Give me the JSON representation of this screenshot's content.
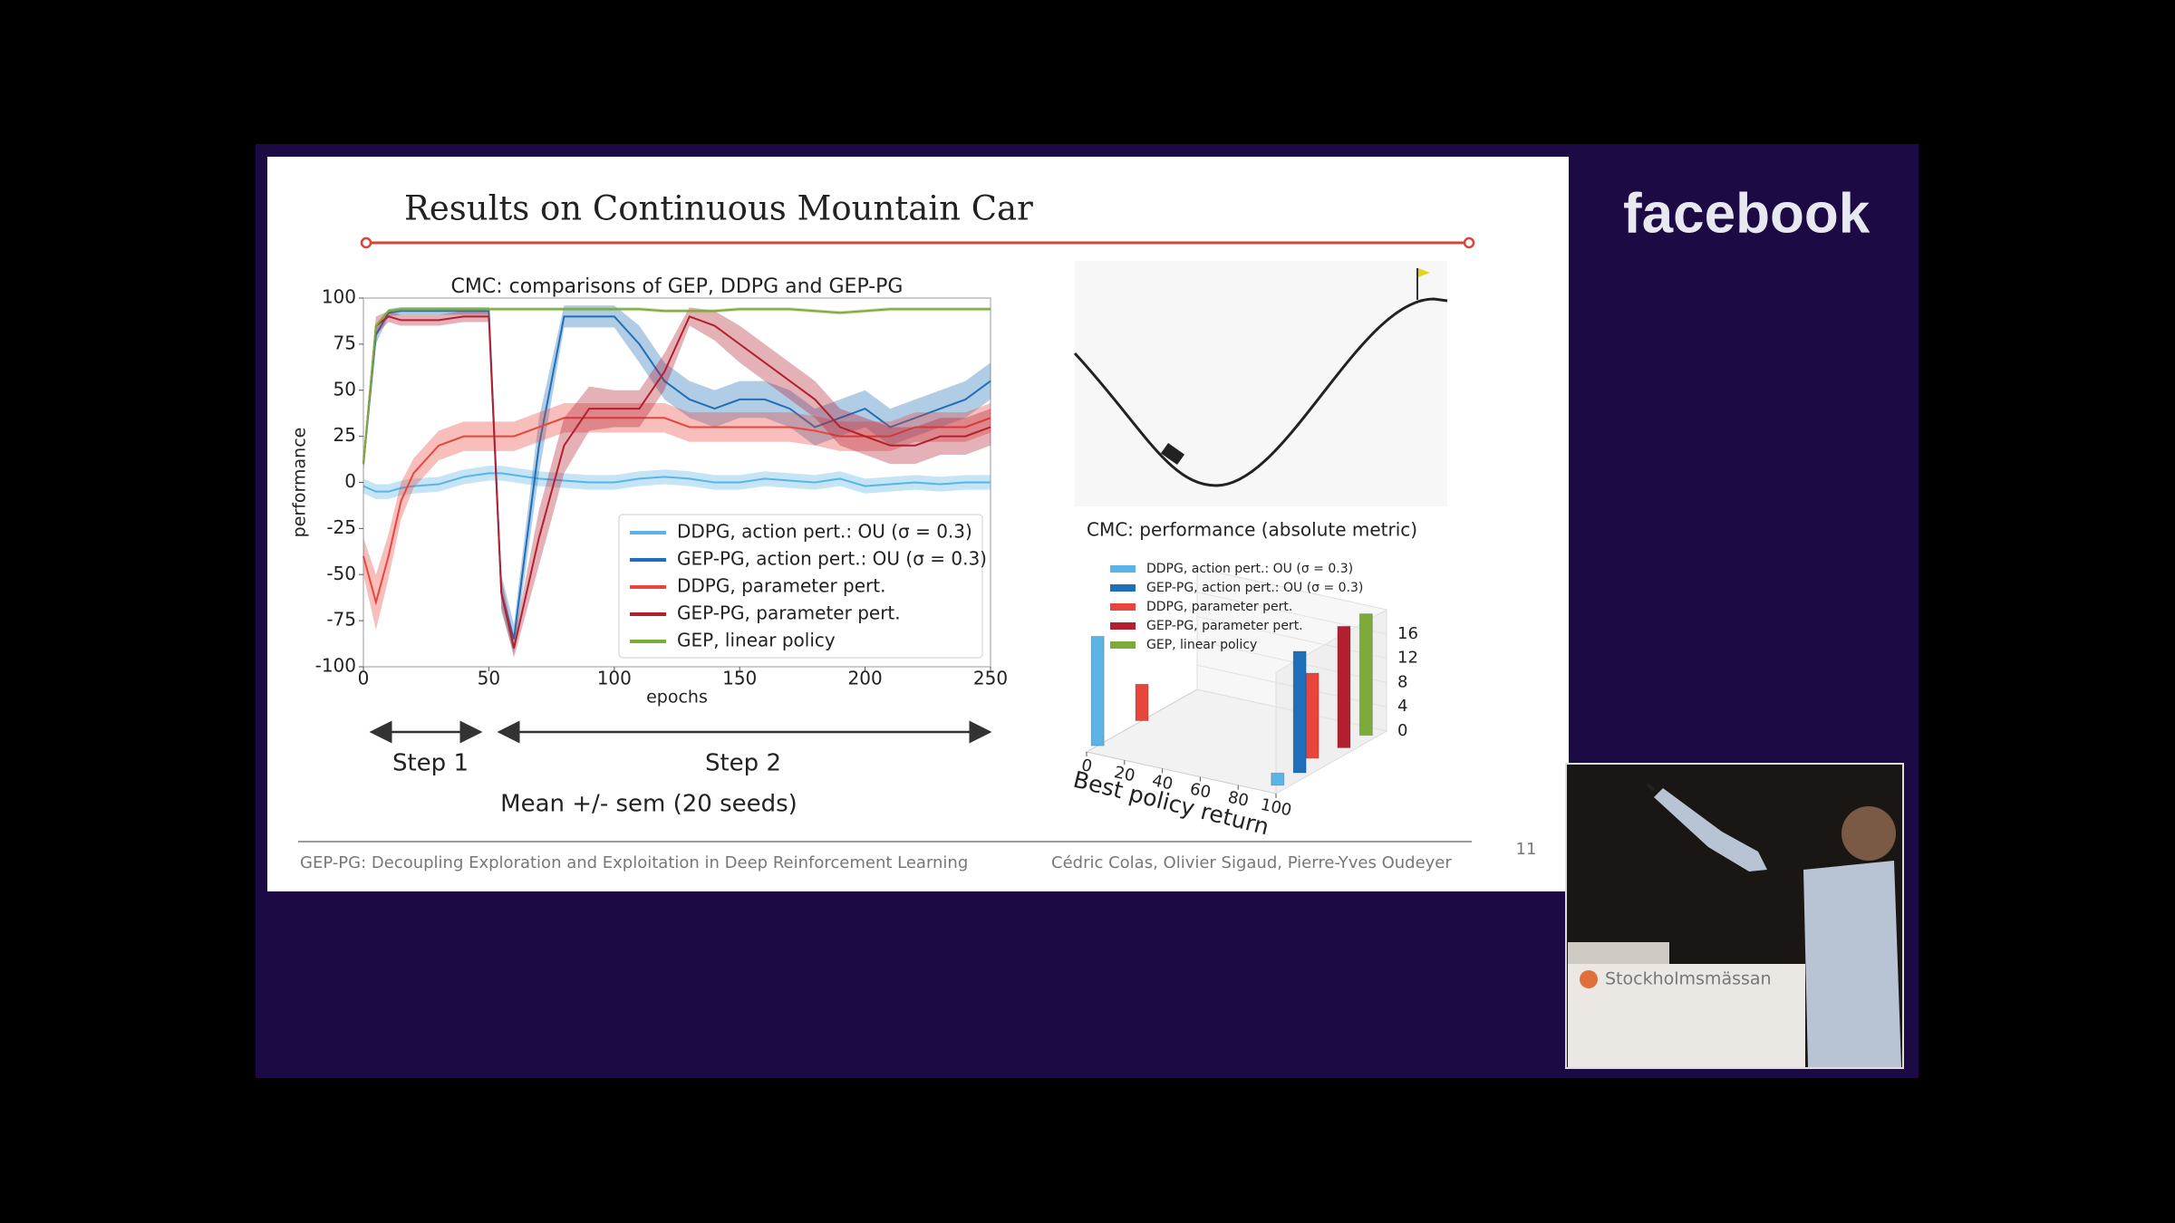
{
  "screen": {
    "brand": "facebook",
    "venue": "Stockholmsmässan"
  },
  "slide": {
    "title": "Results on Continuous Mountain Car",
    "step1": "Step 1",
    "step2": "Step 2",
    "caption": "Mean +/- sem (20 seeds)",
    "footer_left": "GEP-PG: Decoupling Exploration and Exploitation in Deep Reinforcement Learning",
    "footer_right": "Cédric Colas, Olivier Sigaud, Pierre-Yves Oudeyer",
    "page_number": "11"
  },
  "chart_data": [
    {
      "type": "line",
      "title": "CMC: comparisons of GEP, DDPG and GEP-PG",
      "x_label": "epochs",
      "y_label": "performance",
      "xlim": [
        0,
        250
      ],
      "ylim": [
        -100,
        100
      ],
      "xticks": [
        0,
        50,
        100,
        150,
        200,
        250
      ],
      "yticks": [
        -100,
        -75,
        -50,
        -25,
        0,
        25,
        50,
        75,
        100
      ],
      "legend": "lower right",
      "x": [
        0,
        5,
        10,
        15,
        20,
        30,
        40,
        50,
        55,
        60,
        70,
        80,
        90,
        100,
        110,
        120,
        130,
        140,
        150,
        160,
        170,
        180,
        190,
        200,
        210,
        220,
        230,
        240,
        250
      ],
      "series": [
        {
          "name": "DDPG, action pert.: OU (σ = 0.3)",
          "color": "#5ab4e5",
          "values": [
            -2,
            -5,
            -5,
            -3,
            -2,
            -1,
            3,
            5,
            5,
            4,
            2,
            1,
            0,
            0,
            2,
            3,
            2,
            0,
            0,
            2,
            1,
            0,
            2,
            -2,
            -1,
            0,
            -1,
            0,
            0
          ],
          "sem": [
            4,
            4,
            4,
            4,
            4,
            4,
            4,
            4,
            4,
            4,
            4,
            4,
            4,
            4,
            4,
            4,
            4,
            4,
            4,
            4,
            4,
            4,
            4,
            4,
            4,
            4,
            4,
            4,
            4
          ]
        },
        {
          "name": "GEP-PG, action pert.: OU (σ = 0.3)",
          "color": "#1f6fb8",
          "values": [
            10,
            80,
            92,
            93,
            93,
            93,
            93,
            93,
            -60,
            -85,
            20,
            90,
            90,
            90,
            75,
            55,
            45,
            40,
            45,
            45,
            40,
            30,
            35,
            40,
            30,
            35,
            40,
            45,
            55
          ],
          "sem": [
            3,
            5,
            2,
            2,
            2,
            2,
            2,
            2,
            10,
            8,
            15,
            6,
            6,
            6,
            10,
            10,
            10,
            10,
            10,
            10,
            10,
            10,
            10,
            10,
            10,
            10,
            10,
            10,
            10
          ]
        },
        {
          "name": "DDPG, parameter pert.",
          "color": "#e8453c",
          "values": [
            -40,
            -65,
            -40,
            -10,
            5,
            20,
            25,
            25,
            25,
            25,
            30,
            35,
            35,
            35,
            35,
            35,
            30,
            30,
            30,
            30,
            30,
            28,
            25,
            25,
            25,
            30,
            30,
            30,
            35
          ],
          "sem": [
            10,
            15,
            12,
            10,
            8,
            8,
            8,
            8,
            8,
            8,
            8,
            8,
            8,
            8,
            8,
            8,
            8,
            8,
            8,
            8,
            8,
            8,
            8,
            8,
            8,
            8,
            8,
            8,
            8
          ]
        },
        {
          "name": "GEP-PG, parameter pert.",
          "color": "#b22030",
          "values": [
            10,
            85,
            90,
            88,
            88,
            88,
            90,
            90,
            -60,
            -90,
            -30,
            20,
            40,
            40,
            40,
            60,
            90,
            85,
            75,
            65,
            55,
            45,
            30,
            25,
            20,
            20,
            25,
            25,
            30
          ],
          "sem": [
            3,
            5,
            3,
            3,
            3,
            3,
            3,
            3,
            8,
            5,
            15,
            15,
            12,
            10,
            10,
            10,
            5,
            8,
            10,
            10,
            10,
            10,
            10,
            10,
            10,
            10,
            10,
            10,
            10
          ]
        },
        {
          "name": "GEP, linear policy",
          "color": "#7cab3a",
          "values": [
            10,
            85,
            93,
            94,
            94,
            94,
            94,
            94,
            94,
            94,
            94,
            94,
            94,
            94,
            94,
            93,
            93,
            93,
            94,
            94,
            94,
            93,
            92,
            93,
            94,
            94,
            94,
            94,
            94
          ],
          "sem": [
            1,
            1,
            1,
            1,
            1,
            1,
            1,
            1,
            1,
            1,
            1,
            1,
            1,
            1,
            1,
            1,
            1,
            1,
            1,
            1,
            1,
            1,
            1,
            1,
            1,
            1,
            1,
            1,
            1
          ]
        }
      ]
    },
    {
      "type": "bar3d",
      "title": "CMC: performance (absolute metric)",
      "x_label": "Best policy return",
      "xlim": [
        0,
        100
      ],
      "xticks": [
        0,
        20,
        40,
        60,
        80,
        100
      ],
      "zlim": [
        0,
        20
      ],
      "zticks": [
        0,
        4,
        8,
        12,
        16
      ],
      "legend": "upper left",
      "series": [
        {
          "name": "DDPG, action pert.: OU (σ = 0.3)",
          "color": "#5ab4e5",
          "x": [
            0,
            95
          ],
          "values": [
            18,
            2
          ]
        },
        {
          "name": "GEP-PG, action pert.: OU (σ = 0.3)",
          "color": "#1f6fb8",
          "x": [
            95
          ],
          "values": [
            20
          ]
        },
        {
          "name": "DDPG, parameter pert.",
          "color": "#e8453c",
          "x": [
            0,
            90
          ],
          "values": [
            6,
            14
          ]
        },
        {
          "name": "GEP-PG, parameter pert.",
          "color": "#b22030",
          "x": [
            95
          ],
          "values": [
            20
          ]
        },
        {
          "name": "GEP, linear policy",
          "color": "#7cab3a",
          "x": [
            95
          ],
          "values": [
            20
          ]
        }
      ]
    }
  ]
}
